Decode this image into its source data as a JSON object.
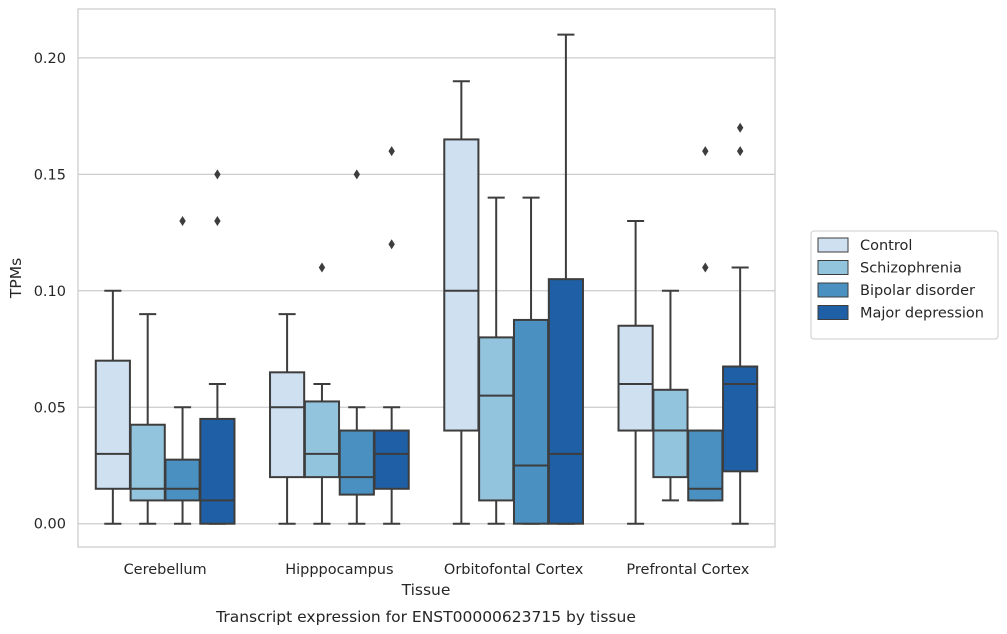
{
  "chart_data": {
    "type": "box",
    "title": "",
    "caption": "Transcript expression for ENST00000623715 by tissue",
    "xlabel": "Tissue",
    "ylabel": "TPMs",
    "ylim": [
      -0.01,
      0.221
    ],
    "yticks": [
      0.0,
      0.05,
      0.1,
      0.15,
      0.2
    ],
    "ytick_labels": [
      "0.00",
      "0.05",
      "0.10",
      "0.15",
      "0.20"
    ],
    "grid": "horizontal",
    "legend_position": "right",
    "categories": [
      "Cerebellum",
      "Hipppocampus",
      "Orbitofontal Cortex",
      "Prefrontal Cortex"
    ],
    "series": [
      {
        "name": "Control",
        "color": "#cfe0f1",
        "boxes": [
          {
            "whislo": 0.0,
            "q1": 0.015,
            "med": 0.03,
            "q3": 0.07,
            "whishi": 0.1,
            "fliers": []
          },
          {
            "whislo": 0.0,
            "q1": 0.02,
            "med": 0.05,
            "q3": 0.065,
            "whishi": 0.09,
            "fliers": []
          },
          {
            "whislo": 0.0,
            "q1": 0.04,
            "med": 0.1,
            "q3": 0.165,
            "whishi": 0.19,
            "fliers": []
          },
          {
            "whislo": 0.0,
            "q1": 0.04,
            "med": 0.06,
            "q3": 0.085,
            "whishi": 0.13,
            "fliers": []
          }
        ]
      },
      {
        "name": "Schizophrenia",
        "color": "#93c4de",
        "boxes": [
          {
            "whislo": 0.0,
            "q1": 0.01,
            "med": 0.015,
            "q3": 0.0425,
            "whishi": 0.09,
            "fliers": []
          },
          {
            "whislo": 0.0,
            "q1": 0.02,
            "med": 0.03,
            "q3": 0.0525,
            "whishi": 0.06,
            "fliers": [
              0.11
            ]
          },
          {
            "whislo": 0.0,
            "q1": 0.01,
            "med": 0.055,
            "q3": 0.08,
            "whishi": 0.14,
            "fliers": []
          },
          {
            "whislo": 0.01,
            "q1": 0.02,
            "med": 0.04,
            "q3": 0.0575,
            "whishi": 0.1,
            "fliers": []
          }
        ]
      },
      {
        "name": "Bipolar disorder",
        "color": "#4a91c2",
        "boxes": [
          {
            "whislo": 0.0,
            "q1": 0.01,
            "med": 0.015,
            "q3": 0.0275,
            "whishi": 0.05,
            "fliers": [
              0.13
            ]
          },
          {
            "whislo": 0.0,
            "q1": 0.0125,
            "med": 0.02,
            "q3": 0.04,
            "whishi": 0.05,
            "fliers": [
              0.15
            ]
          },
          {
            "whislo": 0.0,
            "q1": 0.0,
            "med": 0.025,
            "q3": 0.0875,
            "whishi": 0.14,
            "fliers": []
          },
          {
            "whislo": 0.01,
            "q1": 0.01,
            "med": 0.015,
            "q3": 0.04,
            "whishi": 0.04,
            "fliers": [
              0.11,
              0.16
            ]
          }
        ]
      },
      {
        "name": "Major depression",
        "color": "#1f5fa5",
        "boxes": [
          {
            "whislo": 0.0,
            "q1": 0.0,
            "med": 0.01,
            "q3": 0.045,
            "whishi": 0.06,
            "fliers": [
              0.13,
              0.15
            ]
          },
          {
            "whislo": 0.0,
            "q1": 0.015,
            "med": 0.03,
            "q3": 0.04,
            "whishi": 0.05,
            "fliers": [
              0.12,
              0.16
            ]
          },
          {
            "whislo": 0.0,
            "q1": 0.0,
            "med": 0.03,
            "q3": 0.105,
            "whishi": 0.21,
            "fliers": []
          },
          {
            "whislo": 0.0,
            "q1": 0.0225,
            "med": 0.06,
            "q3": 0.0675,
            "whishi": 0.11,
            "fliers": [
              0.16,
              0.17
            ]
          }
        ]
      }
    ]
  }
}
